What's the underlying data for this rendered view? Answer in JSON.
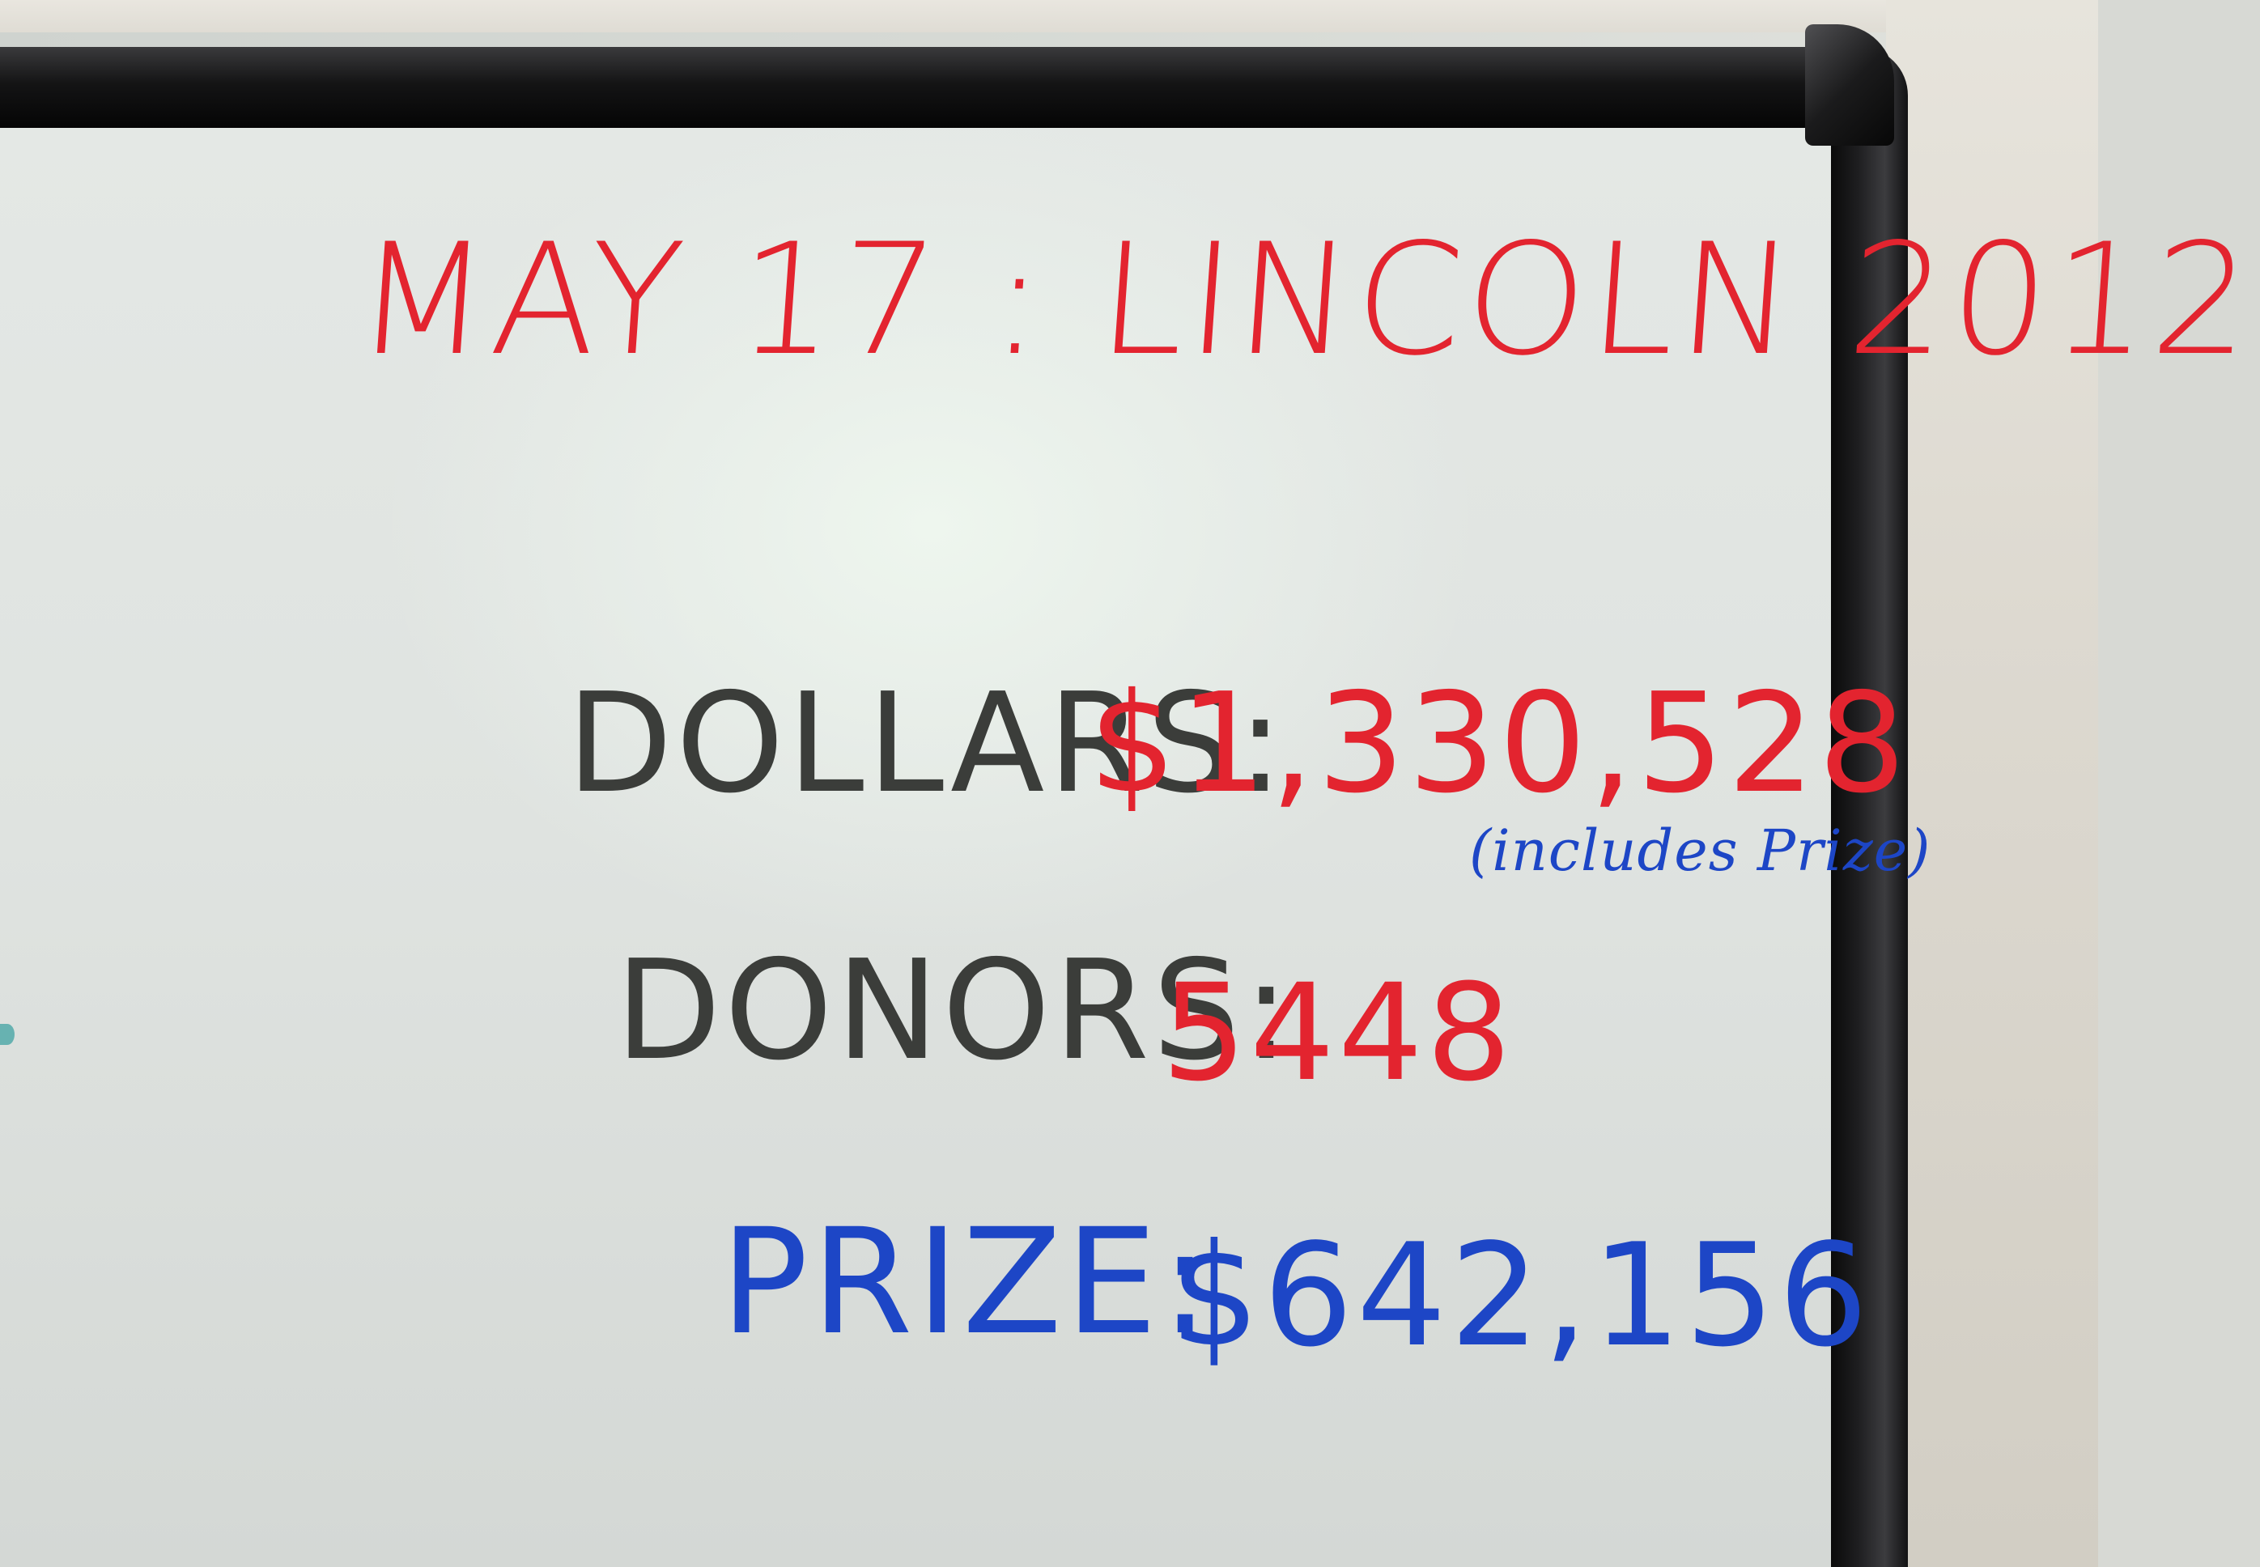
{
  "board": {
    "title": "MAY 17 : LINCOLN 2012",
    "rows": [
      {
        "label": "DOLLARS:",
        "value": "$1,330,528",
        "note": "(includes Prize)"
      },
      {
        "label": "DONORS:",
        "value": "5448"
      },
      {
        "label": "PRIZE:",
        "value": "$642,156"
      }
    ]
  },
  "colors": {
    "red_marker": "#e3242f",
    "black_marker": "#3b3d3a",
    "blue_marker": "#1d46c6",
    "frame": "#141415",
    "board_surface": "#e4e8e5"
  }
}
